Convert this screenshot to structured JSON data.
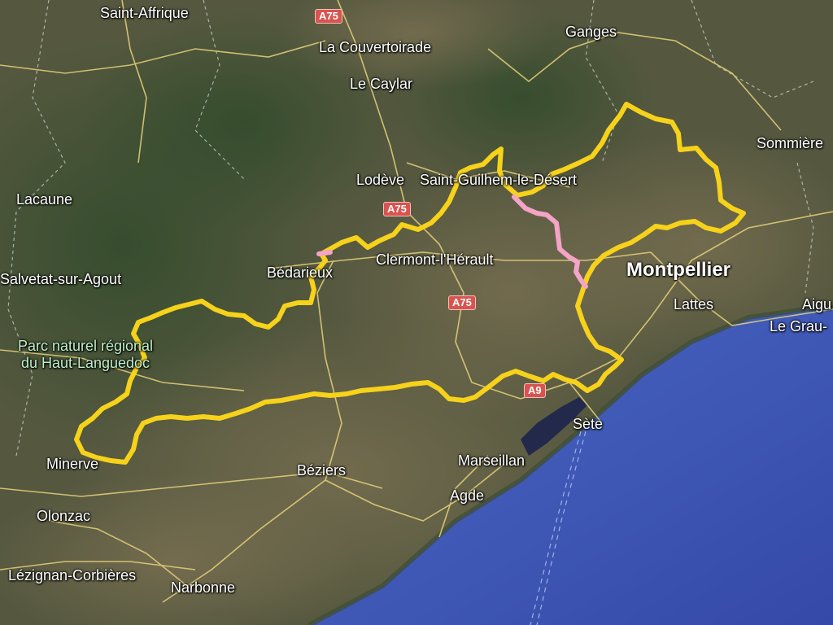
{
  "map": {
    "type": "satellite",
    "colors": {
      "route_main": "#f6d21a",
      "route_alt": "#f5a3c7",
      "sea": "#3f5ab5",
      "road_shield": "#d9534f"
    },
    "places": [
      {
        "key": "saint_affrique",
        "name": "Saint-Affrique"
      },
      {
        "key": "la_couvertoirade",
        "name": "La Couvertoirade"
      },
      {
        "key": "le_caylar",
        "name": "Le Caylar"
      },
      {
        "key": "ganges",
        "name": "Ganges"
      },
      {
        "key": "sommieres",
        "name": "Sommière"
      },
      {
        "key": "lodeve",
        "name": "Lodève"
      },
      {
        "key": "saint_guilhem",
        "name": "Saint-Guilhem-le-Désert"
      },
      {
        "key": "lacaune",
        "name": "Lacaune"
      },
      {
        "key": "salvetat",
        "name": "Salvetat-sur-Agout"
      },
      {
        "key": "bedarieux",
        "name": "Bédarieux"
      },
      {
        "key": "clermont",
        "name": "Clermont-l'Hérault"
      },
      {
        "key": "montpellier",
        "name": "Montpellier"
      },
      {
        "key": "lattes",
        "name": "Lattes"
      },
      {
        "key": "aigues",
        "name": "Aigu"
      },
      {
        "key": "le_grau",
        "name": "Le Grau-"
      },
      {
        "key": "park",
        "name": "Parc naturel régional du Haut-Languedoc"
      },
      {
        "key": "minerve",
        "name": "Minerve"
      },
      {
        "key": "beziers",
        "name": "Béziers"
      },
      {
        "key": "marseillan",
        "name": "Marseillan"
      },
      {
        "key": "sete",
        "name": "Sète"
      },
      {
        "key": "agde",
        "name": "Agde"
      },
      {
        "key": "olonzac",
        "name": "Olonzac"
      },
      {
        "key": "lezignan",
        "name": "Lézignan-Corbières"
      },
      {
        "key": "narbonne",
        "name": "Narbonne"
      }
    ],
    "roads": [
      {
        "key": "a75_top",
        "label": "A75"
      },
      {
        "key": "a75_mid",
        "label": "A75"
      },
      {
        "key": "a75_low",
        "label": "A75"
      },
      {
        "key": "a9",
        "label": "A9"
      }
    ]
  }
}
